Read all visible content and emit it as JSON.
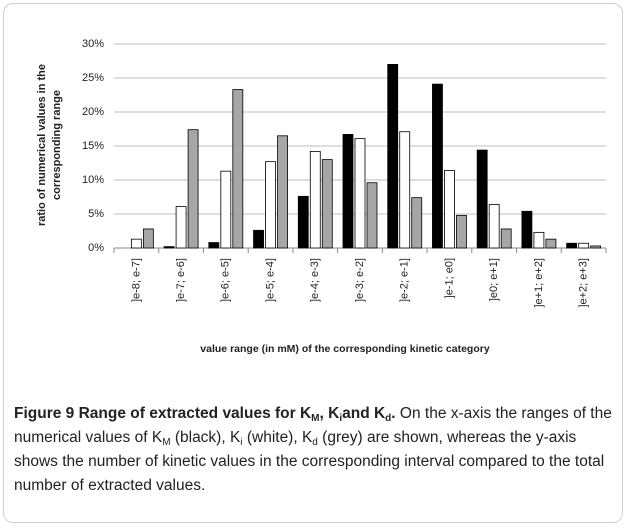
{
  "chart_data": {
    "type": "bar",
    "categories": [
      "]e-8; e-7]",
      "]e-7; e-6]",
      "]e-6; e-5]",
      "]e-5; e-4]",
      "]e-4; e-3]",
      "]e-3; e-2]",
      "]e-2; e-1]",
      "]e-1; e0]",
      "]e0; e+1]",
      "]e+1; e+2]",
      "]e+2; e+3]"
    ],
    "series": [
      {
        "color": "#000000",
        "values": [
          0,
          0.2,
          0.8,
          2.6,
          7.6,
          16.7,
          27.0,
          24.1,
          14.4,
          5.4,
          0.7
        ]
      },
      {
        "color": "#ffffff",
        "values": [
          1.3,
          6.1,
          11.3,
          12.7,
          14.2,
          16.1,
          17.1,
          11.4,
          6.4,
          2.3,
          0.7
        ]
      },
      {
        "color": "#a6a6a6",
        "values": [
          2.8,
          17.4,
          23.3,
          16.5,
          13.0,
          9.6,
          7.4,
          4.8,
          2.8,
          1.3,
          0.3
        ]
      }
    ],
    "ylim": [
      0,
      30
    ],
    "yticks": [
      {
        "value": 0,
        "label": "0%"
      },
      {
        "value": 5,
        "label": "5%"
      },
      {
        "value": 10,
        "label": "10%"
      },
      {
        "value": 15,
        "label": "15%"
      },
      {
        "value": 20,
        "label": "20%"
      },
      {
        "value": 25,
        "label": "25%"
      },
      {
        "value": 30,
        "label": "30%"
      }
    ],
    "y_label": [
      "ratio of numerical values in the",
      "corresponding range"
    ],
    "x_label": "value range (in mM) of the corresponding kinetic category",
    "grid": true
  },
  "caption": {
    "runs": [
      "Figure 9 Range of extracted values for K",
      "M",
      ", K",
      "i",
      "and K",
      "d",
      ". ",
      "On the x-axis the ranges of the numerical values of K",
      "M",
      " (black), K",
      "i",
      " (white), K",
      "d",
      " (grey) are shown, whereas the y-axis shows the number of kinetic values in the corresponding interval compared to the total number of extracted values."
    ]
  }
}
